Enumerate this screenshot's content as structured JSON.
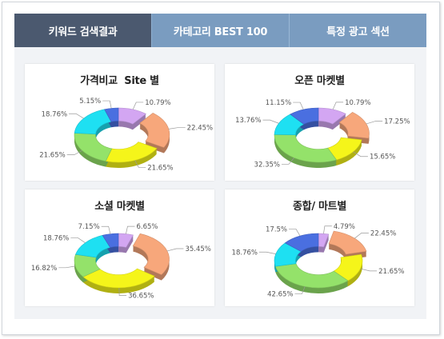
{
  "tabs": [
    {
      "label": "키워드 검색결과",
      "active": true
    },
    {
      "label": "카테고리 BEST 100",
      "active": false
    },
    {
      "label": "특정 광고 섹션",
      "active": false
    }
  ],
  "panels": [
    {
      "title": "가격비교  Site 별",
      "segments": [
        {
          "pct": 10.79,
          "label": "10.79%",
          "color": "#d3a6f2"
        },
        {
          "pct": 22.45,
          "label": "22.45%",
          "color": "#f7a77b"
        },
        {
          "pct": 21.65,
          "label": "21.65%",
          "color": "#f5f51a"
        },
        {
          "pct": 21.65,
          "label": "21.65%",
          "color": "#94e26a"
        },
        {
          "pct": 18.76,
          "label": "18.76%",
          "color": "#1ee0f2"
        },
        {
          "pct": 5.15,
          "label": "5.15%",
          "color": "#4a6fe0"
        }
      ]
    },
    {
      "title": "오픈 마켓별",
      "segments": [
        {
          "pct": 10.79,
          "label": "10.79%",
          "color": "#d3a6f2"
        },
        {
          "pct": 17.25,
          "label": "17.25%",
          "color": "#f7a77b"
        },
        {
          "pct": 15.65,
          "label": "15.65%",
          "color": "#f5f51a"
        },
        {
          "pct": 32.35,
          "label": "32.35%",
          "color": "#94e26a"
        },
        {
          "pct": 13.76,
          "label": "13.76%",
          "color": "#1ee0f2"
        },
        {
          "pct": 11.15,
          "label": "11.15%",
          "color": "#4a6fe0"
        }
      ]
    },
    {
      "title": "소셜 마켓별",
      "segments": [
        {
          "pct": 6.65,
          "label": "6.65%",
          "color": "#d3a6f2"
        },
        {
          "pct": 35.45,
          "label": "35.45%",
          "color": "#f7a77b"
        },
        {
          "pct": 36.65,
          "label": "36.65%",
          "color": "#f5f51a"
        },
        {
          "pct": 16.82,
          "label": "16.82%",
          "color": "#94e26a"
        },
        {
          "pct": 18.76,
          "label": "18.76%",
          "color": "#1ee0f2"
        },
        {
          "pct": 7.15,
          "label": "7.15%",
          "color": "#4a6fe0"
        }
      ]
    },
    {
      "title": "종합/ 마트별",
      "segments": [
        {
          "pct": 4.79,
          "label": "4.79%",
          "color": "#d3a6f2"
        },
        {
          "pct": 22.45,
          "label": "22.45%",
          "color": "#f7a77b"
        },
        {
          "pct": 21.65,
          "label": "21.65%",
          "color": "#f5f51a"
        },
        {
          "pct": 42.65,
          "label": "42.65%",
          "color": "#94e26a"
        },
        {
          "pct": 18.76,
          "label": "18.76%",
          "color": "#1ee0f2"
        },
        {
          "pct": 17.5,
          "label": "17.5%",
          "color": "#4a6fe0"
        }
      ]
    }
  ]
}
